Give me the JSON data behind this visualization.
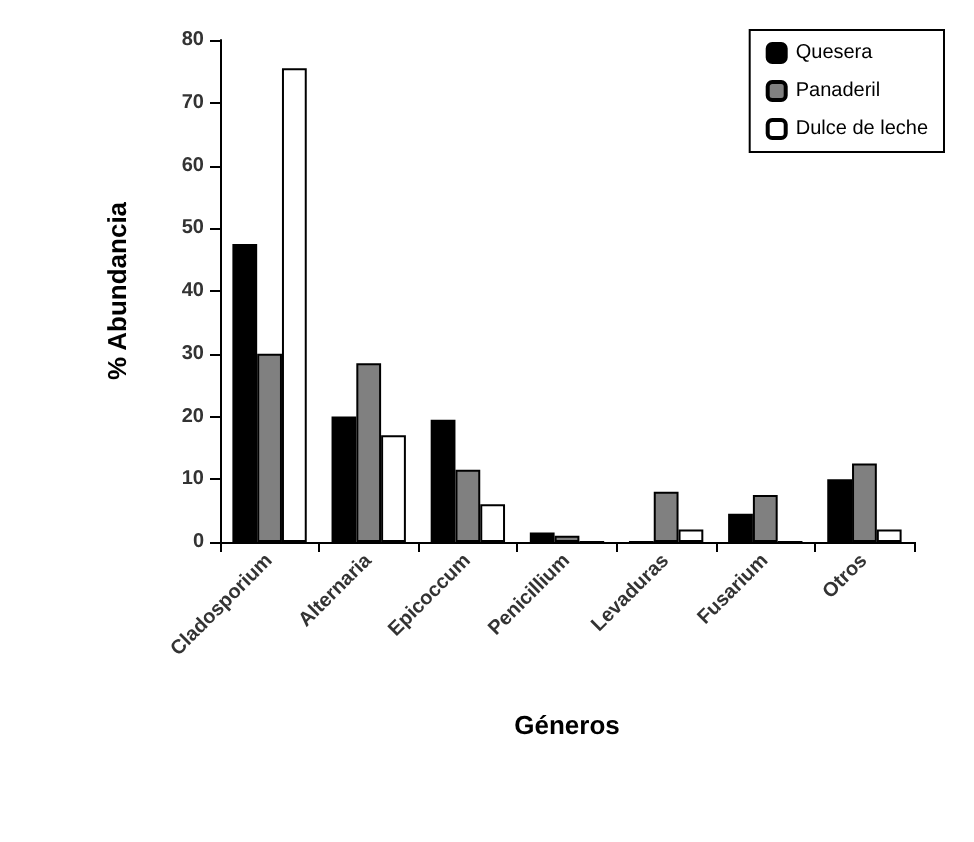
{
  "chart_data": {
    "type": "bar",
    "xlabel": "Géneros",
    "ylabel": "% Abundancia",
    "categories": [
      "Cladosporium",
      "Alternaria",
      "Epicoccum",
      "Penicillium",
      "Levaduras",
      "Fusarium",
      "Otros"
    ],
    "series": [
      {
        "name": "Quesera",
        "color": "#000000",
        "values": [
          47.5,
          20,
          19.5,
          1.5,
          0,
          4.5,
          10
        ]
      },
      {
        "name": "Panaderil",
        "color": "#808080",
        "values": [
          30,
          28.5,
          11.5,
          1,
          8,
          7.5,
          12.5
        ]
      },
      {
        "name": "Dulce de leche",
        "color": "#ffffff",
        "values": [
          75.5,
          17,
          6,
          0,
          2,
          0,
          2
        ]
      }
    ],
    "ylim": [
      0,
      80
    ],
    "yticks": [
      0,
      10,
      20,
      30,
      40,
      50,
      60,
      70,
      80
    ],
    "grid": false,
    "legend": "top right"
  }
}
